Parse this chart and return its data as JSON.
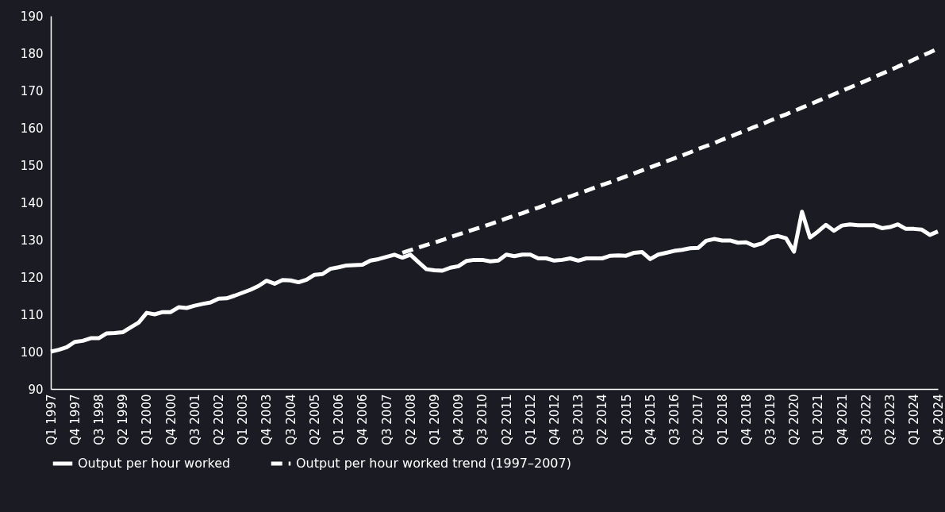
{
  "chart_data": {
    "type": "line",
    "categories": [
      "Q1 1997",
      null,
      null,
      "Q4 1997",
      null,
      null,
      "Q3 1998",
      null,
      null,
      "Q2 1999",
      null,
      null,
      "Q1 2000",
      null,
      null,
      "Q4 2000",
      null,
      null,
      "Q3 2001",
      null,
      null,
      "Q2 2002",
      null,
      null,
      "Q1 2003",
      null,
      null,
      "Q4 2003",
      null,
      null,
      "Q3 2004",
      null,
      null,
      "Q2 2005",
      null,
      null,
      "Q1 2006",
      null,
      null,
      "Q4 2006",
      null,
      null,
      "Q3 2007",
      null,
      null,
      "Q2 2008",
      null,
      null,
      "Q1 2009",
      null,
      null,
      "Q4 2009",
      null,
      null,
      "Q3 2010",
      null,
      null,
      "Q2 2011",
      null,
      null,
      "Q1 2012",
      null,
      null,
      "Q4 2012",
      null,
      null,
      "Q3 2013",
      null,
      null,
      "Q2 2014",
      null,
      null,
      "Q1 2015",
      null,
      null,
      "Q4 2015",
      null,
      null,
      "Q3 2016",
      null,
      null,
      "Q2 2017",
      null,
      null,
      "Q1 2018",
      null,
      null,
      "Q4 2018",
      null,
      null,
      "Q3 2019",
      null,
      null,
      "Q2 2020",
      null,
      null,
      "Q1 2021",
      null,
      null,
      "Q4 2021",
      null,
      null,
      "Q3 2022",
      null,
      null,
      "Q2 2023",
      null,
      null,
      "Q1 2024",
      null,
      null,
      "Q4 2024"
    ],
    "series": [
      {
        "name": "Output per hour worked",
        "color": "#ffffff",
        "line_style": "solid",
        "values": [
          100.0,
          100.5,
          101.2,
          102.6,
          102.9,
          103.6,
          103.6,
          104.9,
          105.0,
          105.2,
          106.5,
          107.8,
          110.4,
          110.0,
          110.6,
          110.6,
          111.9,
          111.7,
          112.3,
          112.8,
          113.2,
          114.2,
          114.3,
          115.0,
          115.8,
          116.6,
          117.6,
          119.0,
          118.2,
          119.2,
          119.1,
          118.6,
          119.3,
          120.6,
          120.8,
          122.2,
          122.6,
          123.1,
          123.2,
          123.3,
          124.4,
          124.8,
          125.4,
          126.0,
          125.2,
          126.0,
          124.0,
          122.1,
          121.8,
          121.7,
          122.5,
          122.9,
          124.3,
          124.6,
          124.6,
          124.2,
          124.4,
          126.0,
          125.6,
          126.0,
          126.0,
          125.0,
          125.0,
          124.4,
          124.6,
          125.0,
          124.4,
          125.0,
          125.0,
          125.0,
          125.7,
          125.8,
          125.7,
          126.5,
          126.7,
          124.8,
          126.0,
          126.5,
          127.0,
          127.3,
          127.7,
          127.8,
          129.7,
          130.2,
          129.8,
          129.8,
          129.2,
          129.3,
          128.4,
          129.0,
          130.6,
          131.0,
          130.4,
          126.8,
          137.5,
          130.6,
          132.2,
          134.0,
          132.4,
          133.8,
          134.1,
          133.9,
          133.9,
          133.9,
          133.1,
          133.4,
          134.1,
          132.9,
          132.9,
          132.7,
          131.3,
          132.2
        ]
      },
      {
        "name": "Output per hour worked trend (1997–2007)",
        "color": "#ffffff",
        "line_style": "dashed",
        "values": [
          null,
          null,
          null,
          null,
          null,
          null,
          null,
          null,
          null,
          null,
          null,
          null,
          null,
          null,
          null,
          null,
          null,
          null,
          null,
          null,
          null,
          null,
          null,
          null,
          null,
          null,
          null,
          null,
          null,
          null,
          null,
          null,
          null,
          null,
          null,
          null,
          null,
          null,
          null,
          null,
          null,
          null,
          null,
          null,
          126.5,
          127.2,
          127.9,
          128.6,
          129.2,
          129.9,
          130.7,
          131.4,
          132.1,
          132.8,
          133.5,
          134.2,
          134.9,
          135.7,
          136.4,
          137.1,
          137.9,
          138.6,
          139.4,
          140.1,
          140.9,
          141.6,
          142.4,
          143.1,
          143.9,
          144.7,
          145.4,
          146.2,
          147.0,
          147.8,
          148.6,
          149.4,
          150.2,
          151.0,
          151.8,
          152.6,
          153.4,
          154.3,
          155.1,
          155.9,
          156.8,
          157.6,
          158.5,
          159.3,
          160.2,
          161.0,
          161.9,
          162.8,
          163.6,
          164.5,
          165.4,
          166.3,
          167.2,
          168.1,
          169.0,
          169.9,
          170.8,
          171.7,
          172.6,
          173.6,
          174.5,
          175.4,
          176.4,
          177.3,
          178.3,
          179.3,
          180.2,
          181.2
        ]
      }
    ],
    "ylim": [
      90,
      190
    ],
    "yticks": [
      90,
      100,
      110,
      120,
      130,
      140,
      150,
      160,
      170,
      180,
      190
    ],
    "legend": "bottom"
  }
}
